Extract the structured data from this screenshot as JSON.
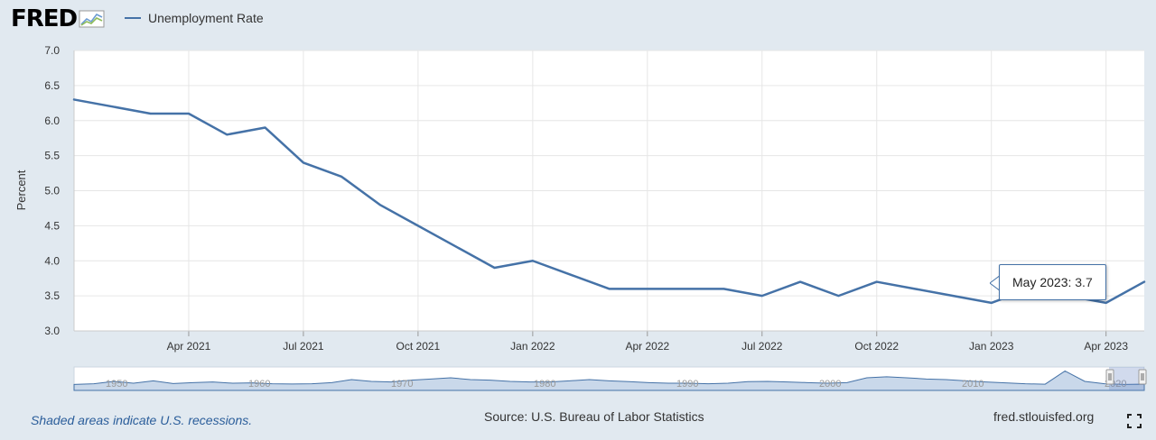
{
  "brand": {
    "logo_text": "FRED"
  },
  "legend": {
    "label": "Unemployment Rate",
    "color": "#4572a7"
  },
  "chart_data": {
    "type": "line",
    "ylabel": "Percent",
    "ylim": [
      3.0,
      7.0
    ],
    "yticks": [
      "3.0",
      "3.5",
      "4.0",
      "4.5",
      "5.0",
      "5.5",
      "6.0",
      "6.5",
      "7.0"
    ],
    "xtick_labels": [
      "Apr 2021",
      "Jul 2021",
      "Oct 2021",
      "Jan 2022",
      "Apr 2022",
      "Jul 2022",
      "Oct 2022",
      "Jan 2023",
      "Apr 2023"
    ],
    "series": [
      {
        "color": "#4572a7",
        "x": [
          "2021-01",
          "2021-02",
          "2021-03",
          "2021-04",
          "2021-05",
          "2021-06",
          "2021-07",
          "2021-08",
          "2021-09",
          "2021-10",
          "2021-11",
          "2021-12",
          "2022-01",
          "2022-02",
          "2022-03",
          "2022-04",
          "2022-05",
          "2022-06",
          "2022-07",
          "2022-08",
          "2022-09",
          "2022-10",
          "2022-11",
          "2022-12",
          "2023-01",
          "2023-02",
          "2023-03",
          "2023-04",
          "2023-05"
        ],
        "values": [
          6.3,
          6.2,
          6.1,
          6.1,
          5.8,
          5.9,
          5.4,
          5.2,
          4.8,
          4.5,
          4.2,
          3.9,
          4.0,
          3.8,
          3.6,
          3.6,
          3.6,
          3.6,
          3.5,
          3.7,
          3.5,
          3.7,
          3.6,
          3.5,
          3.4,
          3.6,
          3.5,
          3.4,
          3.7
        ]
      }
    ],
    "grid": true
  },
  "navigator": {
    "labels": [
      "1950",
      "1960",
      "1970",
      "1980",
      "1990",
      "2000",
      "2010",
      "2020"
    ],
    "values": [
      3.5,
      4.0,
      6.0,
      4.5,
      6.5,
      4.2,
      5.0,
      5.5,
      4.5,
      4.8,
      4.0,
      3.8,
      4.0,
      5.0,
      7.5,
      6.0,
      5.5,
      7.0,
      8.0,
      9.0,
      7.5,
      7.0,
      6.0,
      5.5,
      5.5,
      6.5,
      7.5,
      6.5,
      5.8,
      5.0,
      4.5,
      4.5,
      4.0,
      4.5,
      5.8,
      6.0,
      5.5,
      5.0,
      4.5,
      5.0,
      9.0,
      9.8,
      9.0,
      8.0,
      7.5,
      6.5,
      5.5,
      4.8,
      4.0,
      3.7,
      14.7,
      6.0,
      4.0,
      3.5,
      3.7
    ]
  },
  "tooltip": {
    "label": "May 2023:",
    "value": "3.7"
  },
  "footer": {
    "recession_note": "Shaded areas indicate U.S. recessions.",
    "source": "Source: U.S. Bureau of Labor Statistics",
    "site": "fred.stlouisfed.org"
  }
}
